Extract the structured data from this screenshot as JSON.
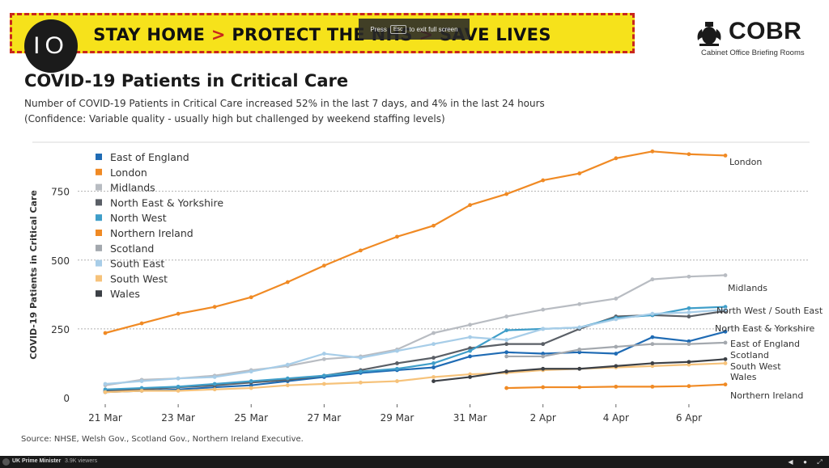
{
  "banner": {
    "part1": "STAY HOME",
    "chevron1": ">",
    "part2": "PROTECT THE NHS",
    "chevron2": ">",
    "part3": "SAVE LIVES"
  },
  "fullscreen_notice": {
    "before": "Press",
    "key": "Esc",
    "after": "to exit full screen"
  },
  "channel_logo": {
    "text": "IO"
  },
  "cobr": {
    "name": "COBR",
    "subtitle": "Cabinet Office Briefing Rooms"
  },
  "player_bar": {
    "channel": "UK Prime Minister",
    "viewers": "3.9K viewers"
  },
  "source": "Source: NHSE, Welsh Gov., Scotland Gov., Northern Ireland Executive.",
  "chart_data": {
    "type": "line",
    "title": "COVID-19 Patients in Critical Care",
    "subtitle": "Number of COVID-19 Patients in Critical Care increased 52% in the last 7 days, and 4% in the last 24 hours",
    "subtitle2": "(Confidence: Variable quality - usually high but challenged by weekend staffing levels)",
    "ylabel": "COVID-19 Patients in Critical Care",
    "xlabel": "",
    "ylim": [
      0,
      940
    ],
    "yticks": [
      0,
      250,
      500,
      750
    ],
    "x": [
      "21 Mar",
      "22 Mar",
      "23 Mar",
      "24 Mar",
      "25 Mar",
      "26 Mar",
      "27 Mar",
      "28 Mar",
      "29 Mar",
      "30 Mar",
      "31 Mar",
      "1 Apr",
      "2 Apr",
      "3 Apr",
      "4 Apr",
      "5 Apr",
      "6 Apr",
      "7 Apr"
    ],
    "xticks": [
      "21 Mar",
      "23 Mar",
      "25 Mar",
      "27 Mar",
      "29 Mar",
      "31 Mar",
      "2 Apr",
      "4 Apr",
      "6 Apr"
    ],
    "legend_position": "top-left",
    "series": [
      {
        "name": "East of England",
        "color": "#1f6bb4",
        "values": [
          20,
          25,
          30,
          38,
          45,
          60,
          75,
          90,
          100,
          110,
          150,
          165,
          160,
          165,
          160,
          220,
          205,
          240
        ]
      },
      {
        "name": "London",
        "color": "#f08a24",
        "values": [
          235,
          270,
          305,
          330,
          365,
          420,
          480,
          535,
          585,
          625,
          700,
          740,
          790,
          815,
          870,
          895,
          885,
          880
        ]
      },
      {
        "name": "Midlands",
        "color": "#b8bcc2",
        "values": [
          45,
          65,
          70,
          80,
          100,
          115,
          140,
          150,
          175,
          235,
          265,
          295,
          320,
          340,
          360,
          430,
          440,
          445
        ]
      },
      {
        "name": "North East & Yorkshire",
        "color": "#5a5f66",
        "values": [
          25,
          30,
          38,
          45,
          55,
          65,
          80,
          100,
          125,
          145,
          180,
          195,
          195,
          250,
          295,
          300,
          295,
          315
        ]
      },
      {
        "name": "North West",
        "color": "#3f9ec9",
        "values": [
          30,
          35,
          40,
          50,
          60,
          70,
          80,
          95,
          105,
          125,
          170,
          245,
          250,
          255,
          290,
          300,
          325,
          330
        ]
      },
      {
        "name": "Northern Ireland",
        "color": "#f08a24",
        "values": [
          null,
          null,
          null,
          null,
          null,
          null,
          null,
          null,
          null,
          null,
          null,
          35,
          38,
          38,
          40,
          40,
          42,
          48
        ]
      },
      {
        "name": "Scotland",
        "color": "#a3a8ae",
        "values": [
          null,
          null,
          null,
          null,
          null,
          null,
          null,
          null,
          null,
          null,
          null,
          150,
          150,
          175,
          185,
          195,
          195,
          200
        ]
      },
      {
        "name": "South East",
        "color": "#a7cde8",
        "values": [
          50,
          60,
          70,
          75,
          95,
          120,
          160,
          145,
          170,
          195,
          220,
          210,
          250,
          255,
          285,
          305,
          310,
          320
        ]
      },
      {
        "name": "South West",
        "color": "#f6c27a",
        "values": [
          20,
          25,
          25,
          30,
          35,
          45,
          50,
          55,
          60,
          75,
          85,
          90,
          100,
          105,
          110,
          115,
          120,
          125
        ]
      },
      {
        "name": "Wales",
        "color": "#3c4046",
        "values": [
          null,
          null,
          null,
          null,
          null,
          null,
          null,
          null,
          null,
          60,
          75,
          95,
          105,
          105,
          115,
          125,
          130,
          140
        ]
      }
    ],
    "end_labels": [
      {
        "text": "London",
        "series": "London"
      },
      {
        "text": "Midlands",
        "series": "Midlands"
      },
      {
        "text": "North West / South East",
        "series": "North West"
      },
      {
        "text": "North East & Yorkshire",
        "series": "North East & Yorkshire"
      },
      {
        "text": "East of England",
        "series": "East of England"
      },
      {
        "text": "Scotland",
        "series": "Scotland"
      },
      {
        "text": "South West",
        "series": "South West"
      },
      {
        "text": "Wales",
        "series": "Wales"
      },
      {
        "text": "Northern Ireland",
        "series": "Northern Ireland"
      }
    ]
  }
}
